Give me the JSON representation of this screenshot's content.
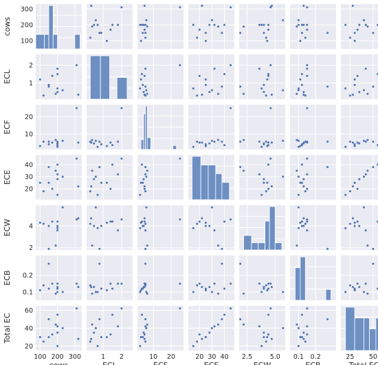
{
  "chart_data": {
    "type": "pairplot",
    "title": "",
    "grid": true,
    "colors": {
      "panel_bg": "#eaeaf2",
      "grid": "#ffffff",
      "marker": "#4c72b0",
      "bar_fill": "#6d8fc2",
      "bar_edge": "#ffffff",
      "text": "#262626"
    },
    "variables": [
      "cows",
      "ECL",
      "ECF",
      "ECE",
      "ECW",
      "ECB",
      "Total EC"
    ],
    "axis_ticks": {
      "cows": {
        "range": [
          75,
          340
        ],
        "ticks": [
          100,
          200,
          300
        ]
      },
      "ECL": {
        "range": [
          0.1,
          2.6
        ],
        "ticks": [
          1,
          2
        ]
      },
      "ECF": {
        "range": [
          1,
          27
        ],
        "ticks": [
          10,
          20
        ]
      },
      "ECE": {
        "range": [
          11,
          48
        ],
        "ticks": [
          20,
          30,
          40
        ]
      },
      "ECW": {
        "range": [
          1.8,
          5.9
        ],
        "ticks": [
          2.5,
          5.0
        ],
        "tick_labels": [
          "2.5",
          "5.0"
        ]
      },
      "ECB": {
        "range": [
          0.05,
          0.32
        ],
        "ticks": [
          0.1,
          0.2
        ]
      },
      "Total EC": {
        "range": [
          15,
          65
        ],
        "ticks": [
          25,
          50
        ]
      }
    },
    "row_ticks": {
      "cows": {
        "range": [
          50,
          330
        ],
        "ticks": [
          100,
          200,
          300
        ]
      },
      "ECL": {
        "range": [
          0.1,
          2.6
        ],
        "ticks": [
          1,
          2
        ]
      },
      "ECF": {
        "range": [
          1,
          27
        ],
        "ticks": [
          10,
          20
        ]
      },
      "ECE": {
        "range": [
          11,
          48
        ],
        "ticks": [
          20,
          30,
          40
        ]
      },
      "ECW": {
        "range": [
          1.8,
          5.9
        ],
        "ticks": [
          2,
          4
        ]
      },
      "ECB": {
        "range": [
          0.05,
          0.32
        ],
        "ticks": [
          0.1,
          0.2
        ]
      },
      "Total EC": {
        "range": [
          15,
          65
        ],
        "ticks": [
          20,
          40,
          60
        ]
      }
    },
    "observations": {
      "cows": [
        100,
        170,
        200,
        310,
        230,
        150,
        200,
        190,
        200,
        120,
        200,
        150,
        320
      ],
      "ECL": [
        1.2,
        1.4,
        1.8,
        2.0,
        0.6,
        0.8,
        1.5,
        0.4,
        0.5,
        0.3,
        0.7,
        0.9,
        0.35
      ],
      "ECF": [
        3.0,
        5.0,
        5.5,
        25.0,
        6.0,
        5.5,
        3.5,
        6.5,
        4.5,
        5.5,
        2.5,
        4.0,
        5.0
      ],
      "ECE": [
        25,
        20,
        32,
        45,
        30,
        38,
        40,
        35,
        28,
        18,
        15,
        25,
        22
      ],
      "ECW": [
        4.3,
        4.4,
        3.6,
        4.6,
        5.7,
        1.9,
        4.4,
        2.2,
        4.0,
        4.2,
        3.8,
        4.0,
        4.7
      ],
      "ECB": [
        0.11,
        0.15,
        0.15,
        0.15,
        0.1,
        0.27,
        0.12,
        0.09,
        0.13,
        0.14,
        0.1,
        0.12,
        0.13
      ],
      "Total EC": [
        30,
        33,
        42,
        62,
        40,
        50,
        55,
        44,
        35,
        25,
        20,
        30,
        28
      ]
    },
    "histograms": {
      "cows": {
        "edges": [
          75,
          125,
          150,
          175,
          200,
          225,
          250,
          275,
          300,
          330
        ],
        "counts": [
          3,
          3,
          9,
          3,
          0,
          0,
          0,
          0,
          3
        ]
      },
      "ECL": {
        "edges": [
          0.3,
          0.85,
          1.35,
          1.75,
          2.3
        ],
        "counts": [
          4,
          4,
          0,
          2
        ]
      },
      "ECF": {
        "edges": [
          3,
          4.5,
          5.5,
          6.5,
          8.5,
          21,
          23
        ],
        "counts": [
          5,
          18,
          22,
          6,
          0,
          2
        ]
      },
      "ECE": {
        "edges": [
          14,
          21,
          27,
          33,
          38,
          44
        ],
        "counts": [
          5,
          4,
          4,
          3,
          2
        ]
      },
      "ECW": {
        "edges": [
          2.2,
          2.9,
          3.5,
          4.1,
          4.5,
          5.0,
          5.6
        ],
        "counts": [
          2,
          1,
          1,
          4,
          6,
          1
        ]
      },
      "ECB": {
        "edges": [
          0.08,
          0.11,
          0.14,
          0.17,
          0.2,
          0.23,
          0.26,
          0.29
        ],
        "counts": [
          3,
          4,
          0,
          0,
          0,
          0,
          1
        ]
      },
      "Total EC": {
        "edges": [
          20,
          30,
          40,
          46,
          53,
          63
        ],
        "counts": [
          4,
          3,
          3,
          2,
          3
        ]
      }
    }
  }
}
